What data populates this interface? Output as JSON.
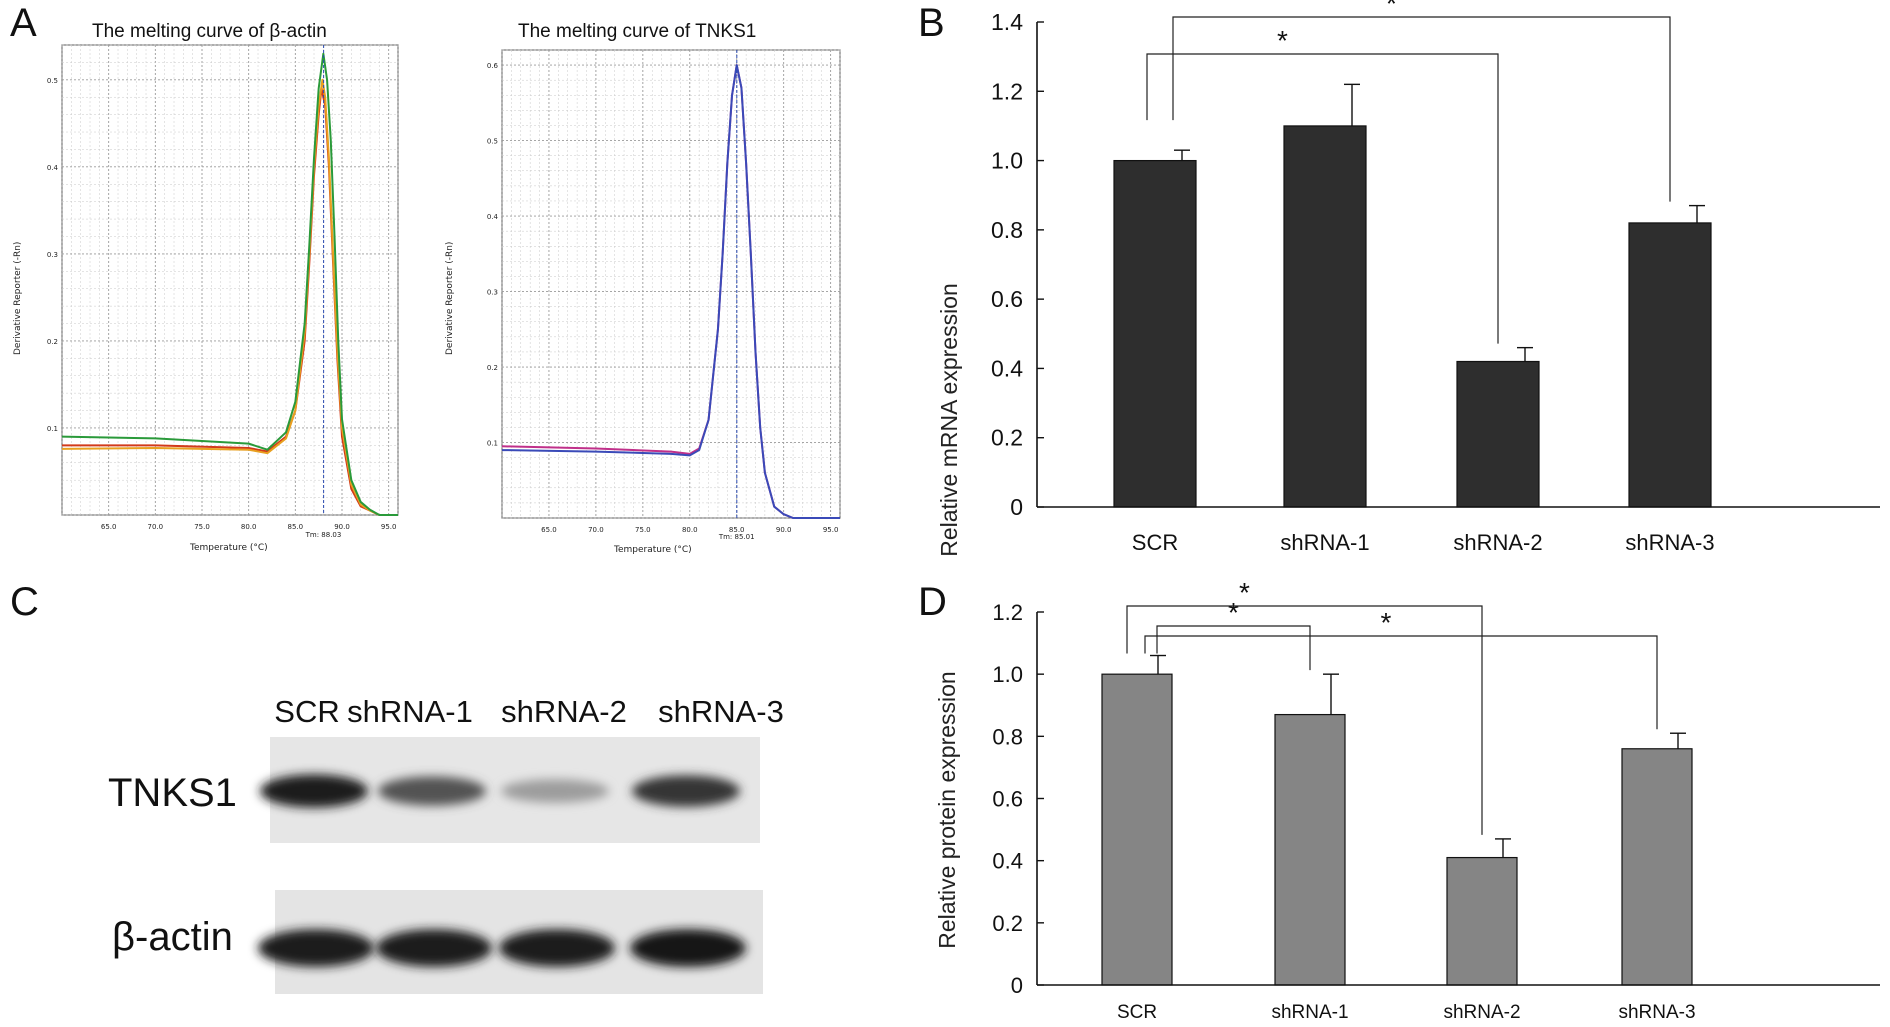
{
  "panels": {
    "A": {
      "letter": "A",
      "curves": [
        {
          "title": "The melting curve of β-actin",
          "xlabel": "Temperature (°C)",
          "ylabel": "Derivative Reporter (-Rn)",
          "xticks": [
            "65.0",
            "70.0",
            "75.0",
            "80.0",
            "85.0",
            "90.0",
            "95.0"
          ],
          "yticks": [
            "0.1",
            "0.2",
            "0.3",
            "0.4",
            "0.5"
          ],
          "tm_label": "Tm: 88.03"
        },
        {
          "title": "The melting curve of TNKS1",
          "xlabel": "Temperature (°C)",
          "ylabel": "Derivative Reporter (-Rn)",
          "xticks": [
            "65.0",
            "70.0",
            "75.0",
            "80.0",
            "85.0",
            "90.0",
            "95.0"
          ],
          "yticks": [
            "0.1",
            "0.2",
            "0.3",
            "0.4",
            "0.5",
            "0.6"
          ],
          "tm_label": "Tm: 85.01"
        }
      ]
    },
    "B": {
      "letter": "B"
    },
    "C": {
      "letter": "C",
      "lanes": [
        "SCR",
        "shRNA-1",
        "shRNA-2",
        "shRNA-3"
      ],
      "rows": [
        "TNKS1",
        "β-actin"
      ],
      "tnks1_intensity": [
        0.95,
        0.7,
        0.35,
        0.85
      ],
      "actin_intensity": [
        0.95,
        0.95,
        0.95,
        0.97
      ]
    },
    "D": {
      "letter": "D"
    }
  },
  "chart_data": [
    {
      "type": "line",
      "title": "The melting curve of β-actin",
      "xlabel": "Temperature (°C)",
      "ylabel": "Derivative Reporter (-Rn)",
      "xlim": [
        60,
        96
      ],
      "ylim": [
        0,
        0.54
      ],
      "tm": 88.03,
      "series": [
        {
          "color": "#d23a1a",
          "x": [
            60,
            70,
            80,
            82,
            84,
            85,
            86,
            86.5,
            87,
            87.5,
            87.8,
            88.2,
            88.6,
            89,
            89.5,
            90,
            91,
            92,
            93,
            94,
            96
          ],
          "y": [
            0.08,
            0.08,
            0.077,
            0.073,
            0.09,
            0.12,
            0.2,
            0.29,
            0.39,
            0.46,
            0.49,
            0.47,
            0.4,
            0.3,
            0.18,
            0.09,
            0.03,
            0.01,
            0.005,
            0,
            0
          ]
        },
        {
          "color": "#e8a020",
          "x": [
            60,
            70,
            80,
            82,
            84,
            85,
            86,
            86.5,
            87,
            87.5,
            87.9,
            88.2,
            88.6,
            89,
            89.5,
            90,
            91,
            92,
            93,
            94,
            96
          ],
          "y": [
            0.076,
            0.077,
            0.075,
            0.071,
            0.088,
            0.12,
            0.21,
            0.3,
            0.4,
            0.47,
            0.5,
            0.48,
            0.41,
            0.31,
            0.19,
            0.1,
            0.035,
            0.012,
            0.005,
            0,
            0
          ]
        },
        {
          "color": "#2a9a3a",
          "x": [
            60,
            70,
            80,
            82,
            84,
            85,
            86,
            86.5,
            87,
            87.5,
            88,
            88.4,
            88.8,
            89.2,
            89.6,
            90,
            91,
            92,
            93,
            94,
            96
          ],
          "y": [
            0.09,
            0.088,
            0.082,
            0.075,
            0.095,
            0.13,
            0.22,
            0.31,
            0.41,
            0.49,
            0.53,
            0.5,
            0.43,
            0.32,
            0.2,
            0.11,
            0.04,
            0.015,
            0.006,
            0,
            0
          ]
        }
      ]
    },
    {
      "type": "line",
      "title": "The melting curve of TNKS1",
      "xlabel": "Temperature (°C)",
      "ylabel": "Derivative Reporter (-Rn)",
      "xlim": [
        60,
        96
      ],
      "ylim": [
        0,
        0.62
      ],
      "tm": 85.01,
      "series": [
        {
          "color": "#c0308a",
          "x": [
            60,
            70,
            78,
            80,
            81,
            82,
            83,
            83.5,
            84,
            84.5,
            85,
            85.5,
            86,
            86.5,
            87,
            87.5,
            88,
            89,
            90,
            91,
            92,
            96
          ],
          "y": [
            0.095,
            0.092,
            0.088,
            0.085,
            0.092,
            0.13,
            0.25,
            0.35,
            0.47,
            0.56,
            0.6,
            0.57,
            0.47,
            0.35,
            0.22,
            0.12,
            0.06,
            0.015,
            0.005,
            0,
            0,
            0
          ]
        },
        {
          "color": "#3a4ab8",
          "x": [
            60,
            70,
            78,
            80,
            81,
            82,
            83,
            83.5,
            84,
            84.5,
            85,
            85.5,
            86,
            86.5,
            87,
            87.5,
            88,
            89,
            90,
            91,
            92,
            96
          ],
          "y": [
            0.09,
            0.088,
            0.085,
            0.083,
            0.09,
            0.13,
            0.25,
            0.35,
            0.47,
            0.56,
            0.6,
            0.57,
            0.47,
            0.35,
            0.22,
            0.12,
            0.06,
            0.015,
            0.005,
            0,
            0,
            0
          ]
        }
      ]
    },
    {
      "type": "bar",
      "categories": [
        "SCR",
        "shRNA-1",
        "shRNA-2",
        "shRNA-3"
      ],
      "values": [
        1.0,
        1.1,
        0.42,
        0.82
      ],
      "errors": [
        0.03,
        0.12,
        0.04,
        0.05
      ],
      "ylabel": "Relative mRNA expression",
      "yticks": [
        "0",
        "0.2",
        "0.4",
        "0.6",
        "0.8",
        "1.0",
        "1.2",
        "1.4"
      ],
      "ylim": [
        0,
        1.4
      ],
      "bar_color": "#2e2e2e",
      "significance": [
        {
          "from": 0,
          "to": 2,
          "label": "*"
        },
        {
          "from": 0,
          "to": 3,
          "label": "*"
        }
      ]
    },
    {
      "type": "bar",
      "categories": [
        "SCR",
        "shRNA-1",
        "shRNA-2",
        "shRNA-3"
      ],
      "values": [
        1.0,
        0.87,
        0.41,
        0.76
      ],
      "errors": [
        0.06,
        0.13,
        0.06,
        0.05
      ],
      "ylabel": "Relative protein expression",
      "yticks": [
        "0",
        "0.2",
        "0.4",
        "0.6",
        "0.8",
        "1.0",
        "1.2"
      ],
      "ylim": [
        0,
        1.2
      ],
      "bar_color": "#858585",
      "significance": [
        {
          "from": 0,
          "to": 1,
          "label": "*"
        },
        {
          "from": 0,
          "to": 2,
          "label": "*"
        },
        {
          "from": 0,
          "to": 3,
          "label": "*"
        }
      ]
    }
  ]
}
